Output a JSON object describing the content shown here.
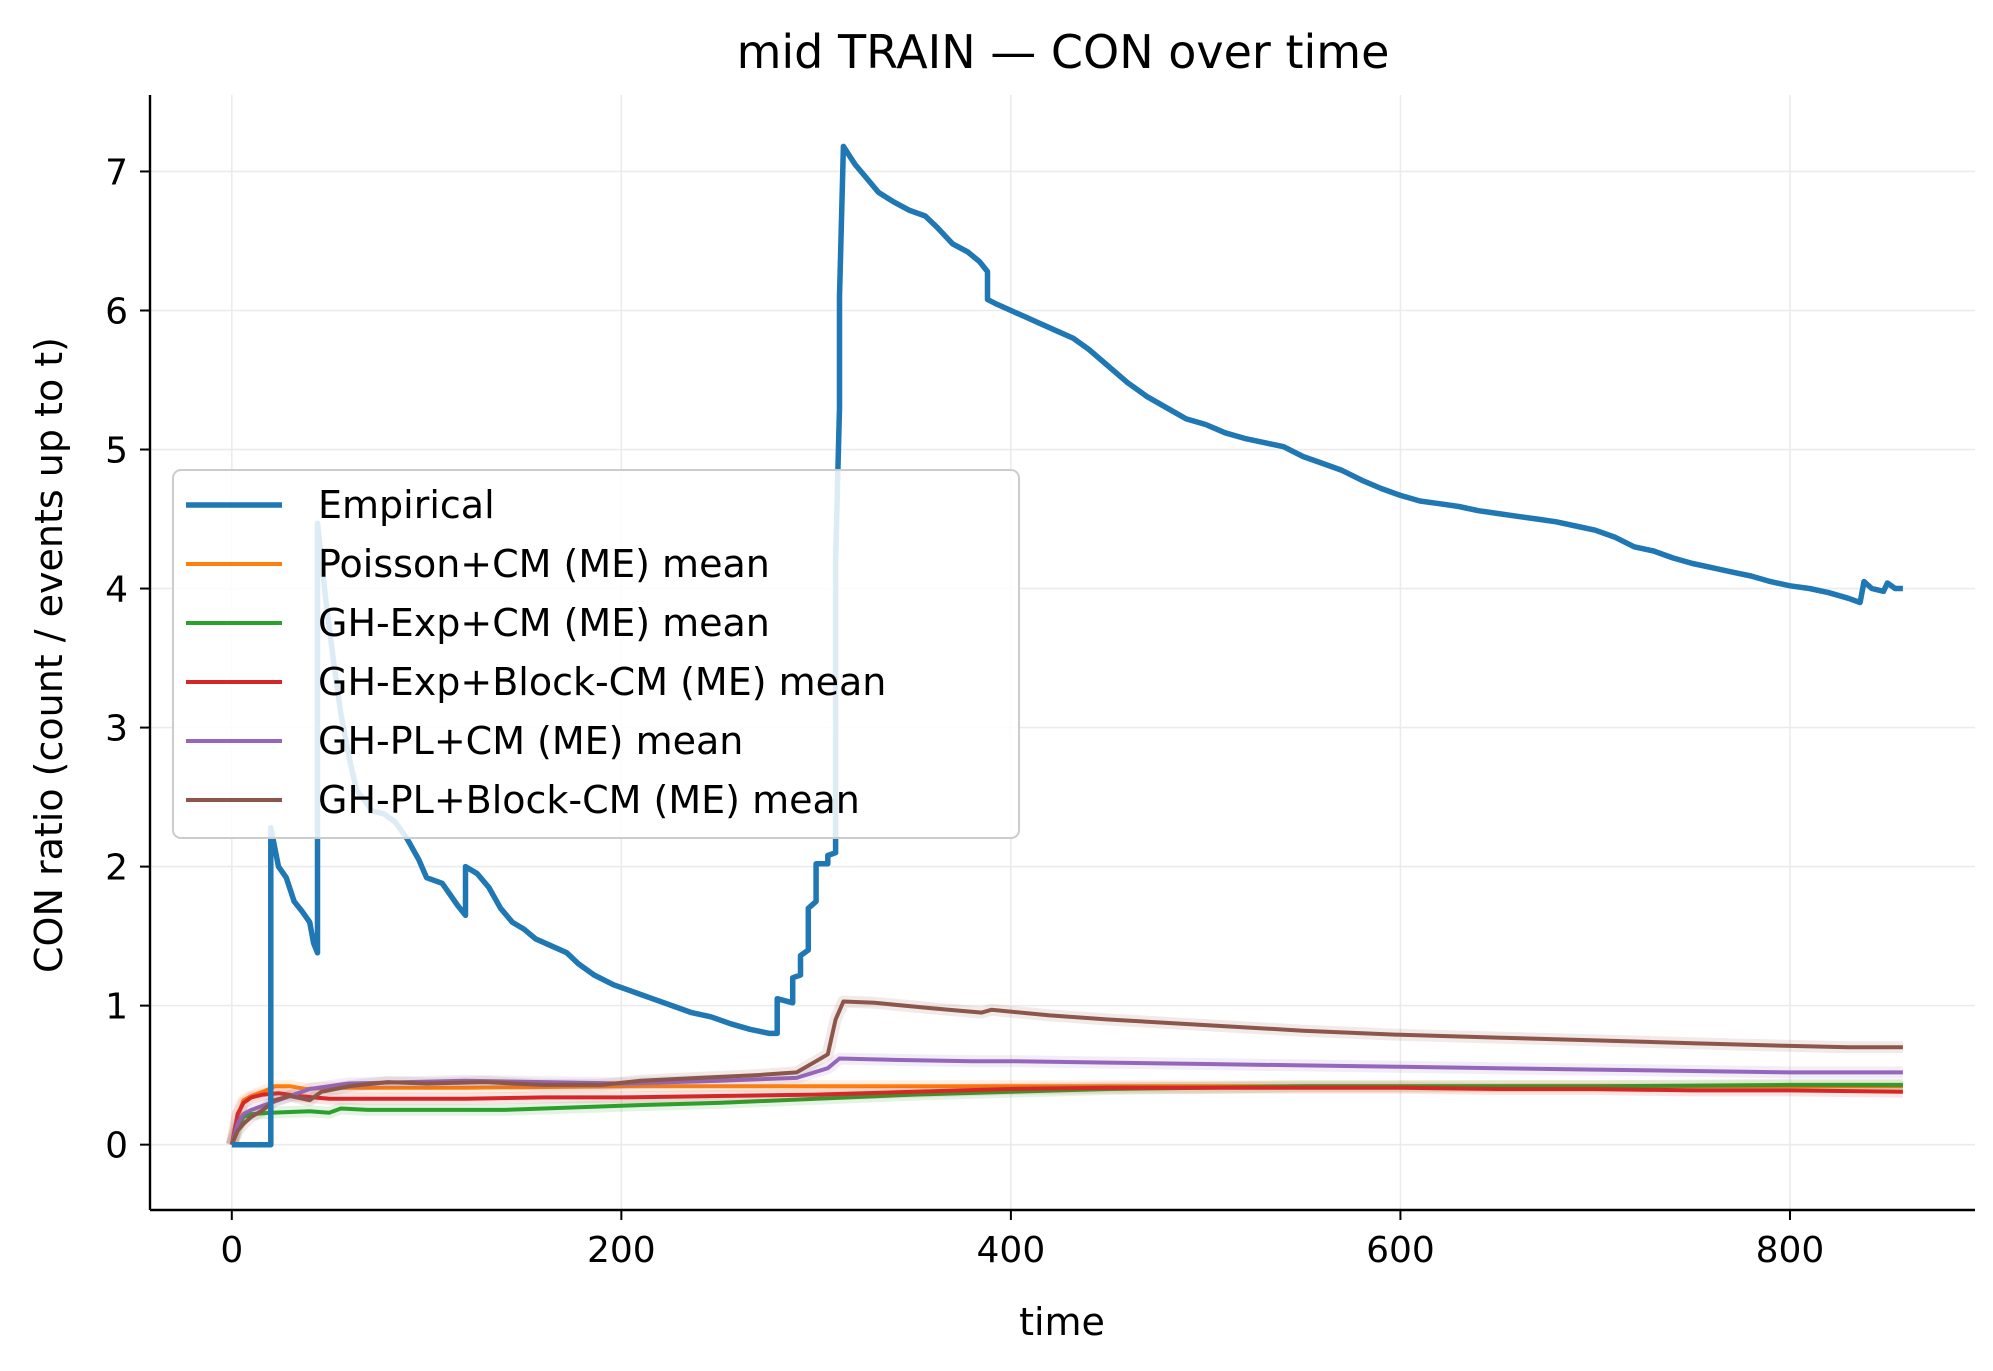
{
  "chart_data": {
    "type": "line",
    "title": "mid TRAIN — CON over time",
    "xlabel": "time",
    "ylabel": "CON ratio (count / events up to t)",
    "xlim": [
      -42,
      895
    ],
    "ylim": [
      -0.47,
      7.55
    ],
    "xticks": [
      0,
      200,
      400,
      600,
      800
    ],
    "yticks": [
      0,
      1,
      2,
      3,
      4,
      5,
      6,
      7
    ],
    "grid": true,
    "legend_position": "center-left",
    "series": [
      {
        "name": "Empirical",
        "color": "#1f77b4",
        "emphasis": true,
        "points": [
          [
            0,
            0
          ],
          [
            20,
            0
          ],
          [
            20,
            2.28
          ],
          [
            24,
            2.0
          ],
          [
            28,
            1.92
          ],
          [
            32,
            1.75
          ],
          [
            36,
            1.68
          ],
          [
            40,
            1.6
          ],
          [
            42,
            1.45
          ],
          [
            44,
            1.38
          ],
          [
            44,
            4.47
          ],
          [
            48,
            3.95
          ],
          [
            52,
            3.5
          ],
          [
            56,
            3.1
          ],
          [
            60,
            2.8
          ],
          [
            64,
            2.55
          ],
          [
            68,
            2.48
          ],
          [
            72,
            2.4
          ],
          [
            78,
            2.38
          ],
          [
            84,
            2.32
          ],
          [
            90,
            2.2
          ],
          [
            96,
            2.05
          ],
          [
            100,
            1.92
          ],
          [
            108,
            1.88
          ],
          [
            116,
            1.72
          ],
          [
            120,
            1.65
          ],
          [
            120,
            2.0
          ],
          [
            126,
            1.95
          ],
          [
            132,
            1.85
          ],
          [
            138,
            1.7
          ],
          [
            144,
            1.6
          ],
          [
            150,
            1.55
          ],
          [
            156,
            1.48
          ],
          [
            164,
            1.43
          ],
          [
            172,
            1.38
          ],
          [
            178,
            1.3
          ],
          [
            186,
            1.22
          ],
          [
            196,
            1.15
          ],
          [
            206,
            1.1
          ],
          [
            216,
            1.05
          ],
          [
            226,
            1.0
          ],
          [
            236,
            0.95
          ],
          [
            246,
            0.92
          ],
          [
            256,
            0.87
          ],
          [
            266,
            0.83
          ],
          [
            276,
            0.8
          ],
          [
            280,
            0.8
          ],
          [
            280,
            1.05
          ],
          [
            288,
            1.02
          ],
          [
            288,
            1.2
          ],
          [
            292,
            1.22
          ],
          [
            292,
            1.36
          ],
          [
            296,
            1.4
          ],
          [
            296,
            1.7
          ],
          [
            300,
            1.75
          ],
          [
            300,
            2.02
          ],
          [
            306,
            2.02
          ],
          [
            306,
            2.08
          ],
          [
            310,
            2.1
          ],
          [
            310,
            4.2
          ],
          [
            312,
            5.3
          ],
          [
            312,
            6.1
          ],
          [
            314,
            7.18
          ],
          [
            320,
            7.05
          ],
          [
            326,
            6.95
          ],
          [
            332,
            6.85
          ],
          [
            340,
            6.78
          ],
          [
            348,
            6.72
          ],
          [
            356,
            6.68
          ],
          [
            362,
            6.6
          ],
          [
            370,
            6.48
          ],
          [
            378,
            6.42
          ],
          [
            384,
            6.35
          ],
          [
            388,
            6.28
          ],
          [
            388,
            6.08
          ],
          [
            392,
            6.05
          ],
          [
            400,
            6.0
          ],
          [
            408,
            5.95
          ],
          [
            416,
            5.9
          ],
          [
            424,
            5.85
          ],
          [
            432,
            5.8
          ],
          [
            440,
            5.72
          ],
          [
            450,
            5.6
          ],
          [
            460,
            5.48
          ],
          [
            470,
            5.38
          ],
          [
            480,
            5.3
          ],
          [
            490,
            5.22
          ],
          [
            500,
            5.18
          ],
          [
            510,
            5.12
          ],
          [
            520,
            5.08
          ],
          [
            530,
            5.05
          ],
          [
            540,
            5.02
          ],
          [
            550,
            4.95
          ],
          [
            560,
            4.9
          ],
          [
            570,
            4.85
          ],
          [
            580,
            4.78
          ],
          [
            590,
            4.72
          ],
          [
            600,
            4.67
          ],
          [
            610,
            4.63
          ],
          [
            620,
            4.61
          ],
          [
            630,
            4.59
          ],
          [
            640,
            4.56
          ],
          [
            650,
            4.54
          ],
          [
            660,
            4.52
          ],
          [
            670,
            4.5
          ],
          [
            680,
            4.48
          ],
          [
            690,
            4.45
          ],
          [
            700,
            4.42
          ],
          [
            710,
            4.37
          ],
          [
            720,
            4.3
          ],
          [
            730,
            4.27
          ],
          [
            740,
            4.22
          ],
          [
            750,
            4.18
          ],
          [
            760,
            4.15
          ],
          [
            770,
            4.12
          ],
          [
            780,
            4.09
          ],
          [
            790,
            4.05
          ],
          [
            800,
            4.02
          ],
          [
            810,
            4.0
          ],
          [
            820,
            3.97
          ],
          [
            830,
            3.93
          ],
          [
            836,
            3.9
          ],
          [
            838,
            4.05
          ],
          [
            842,
            4.0
          ],
          [
            848,
            3.98
          ],
          [
            850,
            4.04
          ],
          [
            854,
            4.0
          ],
          [
            858,
            4.0
          ]
        ]
      },
      {
        "name": "Poisson+CM (ME) mean",
        "color": "#ff7f0e",
        "points": [
          [
            0,
            0
          ],
          [
            3,
            0.2
          ],
          [
            6,
            0.32
          ],
          [
            10,
            0.35
          ],
          [
            16,
            0.38
          ],
          [
            22,
            0.42
          ],
          [
            30,
            0.42
          ],
          [
            38,
            0.4
          ],
          [
            50,
            0.41
          ],
          [
            80,
            0.41
          ],
          [
            120,
            0.41
          ],
          [
            200,
            0.42
          ],
          [
            300,
            0.42
          ],
          [
            400,
            0.42
          ],
          [
            500,
            0.42
          ],
          [
            600,
            0.42
          ],
          [
            700,
            0.42
          ],
          [
            800,
            0.42
          ],
          [
            858,
            0.42
          ]
        ]
      },
      {
        "name": "GH-Exp+CM (ME) mean",
        "color": "#2ca02c",
        "points": [
          [
            0,
            0
          ],
          [
            3,
            0.12
          ],
          [
            6,
            0.2
          ],
          [
            10,
            0.22
          ],
          [
            20,
            0.23
          ],
          [
            40,
            0.24
          ],
          [
            50,
            0.23
          ],
          [
            56,
            0.26
          ],
          [
            70,
            0.25
          ],
          [
            100,
            0.25
          ],
          [
            140,
            0.25
          ],
          [
            180,
            0.27
          ],
          [
            200,
            0.28
          ],
          [
            250,
            0.3
          ],
          [
            300,
            0.33
          ],
          [
            350,
            0.36
          ],
          [
            400,
            0.38
          ],
          [
            450,
            0.4
          ],
          [
            500,
            0.41
          ],
          [
            550,
            0.42
          ],
          [
            600,
            0.42
          ],
          [
            700,
            0.42
          ],
          [
            800,
            0.43
          ],
          [
            858,
            0.43
          ]
        ]
      },
      {
        "name": "GH-Exp+Block-CM (ME) mean",
        "color": "#d62728",
        "points": [
          [
            0,
            0
          ],
          [
            3,
            0.22
          ],
          [
            6,
            0.3
          ],
          [
            10,
            0.34
          ],
          [
            16,
            0.36
          ],
          [
            24,
            0.37
          ],
          [
            34,
            0.35
          ],
          [
            50,
            0.33
          ],
          [
            80,
            0.33
          ],
          [
            120,
            0.33
          ],
          [
            160,
            0.34
          ],
          [
            200,
            0.34
          ],
          [
            250,
            0.35
          ],
          [
            300,
            0.36
          ],
          [
            350,
            0.38
          ],
          [
            400,
            0.4
          ],
          [
            450,
            0.41
          ],
          [
            500,
            0.41
          ],
          [
            550,
            0.41
          ],
          [
            600,
            0.41
          ],
          [
            650,
            0.4
          ],
          [
            700,
            0.4
          ],
          [
            750,
            0.39
          ],
          [
            800,
            0.39
          ],
          [
            858,
            0.38
          ]
        ]
      },
      {
        "name": "GH-PL+CM (ME) mean",
        "color": "#9467bd",
        "points": [
          [
            0,
            0
          ],
          [
            3,
            0.15
          ],
          [
            6,
            0.22
          ],
          [
            10,
            0.25
          ],
          [
            20,
            0.3
          ],
          [
            30,
            0.35
          ],
          [
            40,
            0.4
          ],
          [
            60,
            0.44
          ],
          [
            90,
            0.45
          ],
          [
            120,
            0.46
          ],
          [
            160,
            0.45
          ],
          [
            200,
            0.44
          ],
          [
            250,
            0.46
          ],
          [
            290,
            0.48
          ],
          [
            306,
            0.55
          ],
          [
            312,
            0.62
          ],
          [
            340,
            0.61
          ],
          [
            380,
            0.6
          ],
          [
            400,
            0.6
          ],
          [
            450,
            0.59
          ],
          [
            500,
            0.58
          ],
          [
            550,
            0.57
          ],
          [
            600,
            0.56
          ],
          [
            650,
            0.55
          ],
          [
            700,
            0.54
          ],
          [
            750,
            0.53
          ],
          [
            800,
            0.52
          ],
          [
            858,
            0.52
          ]
        ]
      },
      {
        "name": "GH-PL+Block-CM (ME) mean",
        "color": "#8c564b",
        "points": [
          [
            0,
            0
          ],
          [
            3,
            0.1
          ],
          [
            6,
            0.15
          ],
          [
            10,
            0.2
          ],
          [
            16,
            0.25
          ],
          [
            22,
            0.32
          ],
          [
            30,
            0.35
          ],
          [
            40,
            0.32
          ],
          [
            46,
            0.38
          ],
          [
            60,
            0.42
          ],
          [
            80,
            0.45
          ],
          [
            100,
            0.44
          ],
          [
            130,
            0.45
          ],
          [
            160,
            0.43
          ],
          [
            190,
            0.43
          ],
          [
            210,
            0.46
          ],
          [
            240,
            0.48
          ],
          [
            270,
            0.5
          ],
          [
            290,
            0.52
          ],
          [
            300,
            0.6
          ],
          [
            306,
            0.65
          ],
          [
            310,
            0.9
          ],
          [
            314,
            1.03
          ],
          [
            330,
            1.02
          ],
          [
            360,
            0.98
          ],
          [
            385,
            0.95
          ],
          [
            390,
            0.97
          ],
          [
            420,
            0.93
          ],
          [
            450,
            0.9
          ],
          [
            500,
            0.86
          ],
          [
            550,
            0.82
          ],
          [
            600,
            0.79
          ],
          [
            650,
            0.77
          ],
          [
            700,
            0.75
          ],
          [
            750,
            0.73
          ],
          [
            800,
            0.71
          ],
          [
            830,
            0.7
          ],
          [
            858,
            0.7
          ]
        ]
      }
    ]
  }
}
